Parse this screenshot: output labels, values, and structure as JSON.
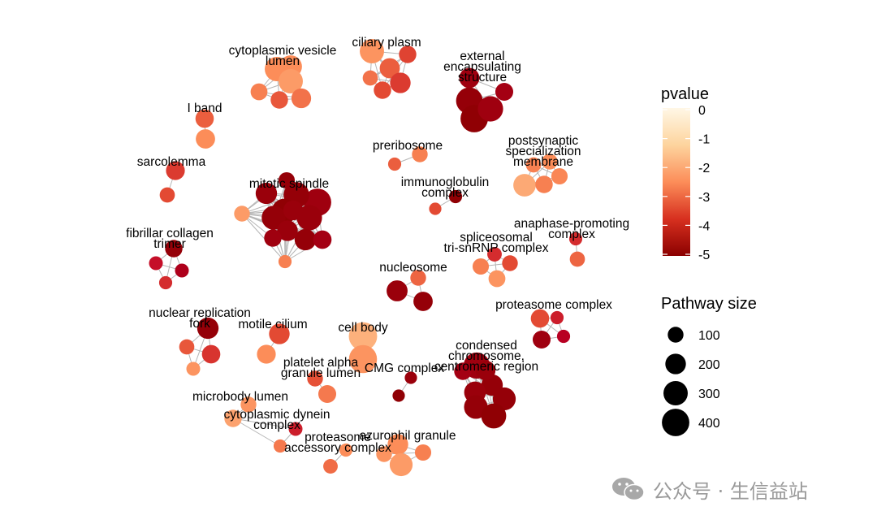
{
  "chart_data": {
    "type": "network",
    "title": "",
    "clusters": [
      {
        "label": "cytoplasmic vesicle\nlumen",
        "nodes": [
          {
            "pvalue": -2.0,
            "size": 300
          },
          {
            "pvalue": -2.0,
            "size": 250
          },
          {
            "pvalue": -1.8,
            "size": 300
          },
          {
            "pvalue": -2.2,
            "size": 120
          },
          {
            "pvalue": -2.8,
            "size": 130
          },
          {
            "pvalue": -2.4,
            "size": 180
          }
        ]
      },
      {
        "label": "ciliary plasm",
        "nodes": [
          {
            "pvalue": -1.9,
            "size": 300
          },
          {
            "pvalue": -2.7,
            "size": 190
          },
          {
            "pvalue": -2.4,
            "size": 90
          },
          {
            "pvalue": -3.0,
            "size": 130
          },
          {
            "pvalue": -3.2,
            "size": 200
          },
          {
            "pvalue": -3.1,
            "size": 130
          }
        ]
      },
      {
        "label": "external\nencapsulating\nstructure",
        "nodes": [
          {
            "pvalue": -4.8,
            "size": 370
          },
          {
            "pvalue": -4.9,
            "size": 400
          },
          {
            "pvalue": -4.6,
            "size": 330
          },
          {
            "pvalue": -4.5,
            "size": 140
          },
          {
            "pvalue": -4.6,
            "size": 190
          }
        ]
      },
      {
        "label": "I band",
        "nodes": [
          {
            "pvalue": -2.7,
            "size": 150
          },
          {
            "pvalue": -2.0,
            "size": 170
          }
        ]
      },
      {
        "label": "sarcolemma",
        "nodes": [
          {
            "pvalue": -3.2,
            "size": 160
          },
          {
            "pvalue": -3.0,
            "size": 90
          }
        ]
      },
      {
        "label": "preribosome",
        "nodes": [
          {
            "pvalue": -2.2,
            "size": 100
          },
          {
            "pvalue": -2.7,
            "size": 60
          }
        ]
      },
      {
        "label": "postsynaptic\nspecialization\nmembrane",
        "nodes": [
          {
            "pvalue": -1.6,
            "size": 250
          },
          {
            "pvalue": -2.2,
            "size": 130
          },
          {
            "pvalue": -2.1,
            "size": 110
          },
          {
            "pvalue": -2.0,
            "size": 100
          },
          {
            "pvalue": -2.2,
            "size": 90
          }
        ]
      },
      {
        "label": "mitotic spindle",
        "nodes": [
          {
            "pvalue": -4.6,
            "size": 400
          },
          {
            "pvalue": -4.8,
            "size": 340
          },
          {
            "pvalue": -4.7,
            "size": 330
          },
          {
            "pvalue": -4.9,
            "size": 320
          },
          {
            "pvalue": -4.8,
            "size": 290
          },
          {
            "pvalue": -4.7,
            "size": 220
          },
          {
            "pvalue": -4.8,
            "size": 220
          },
          {
            "pvalue": -4.7,
            "size": 200
          },
          {
            "pvalue": -4.7,
            "size": 180
          },
          {
            "pvalue": -4.5,
            "size": 150
          },
          {
            "pvalue": -4.6,
            "size": 130
          },
          {
            "pvalue": -4.8,
            "size": 110
          },
          {
            "pvalue": -1.8,
            "size": 100
          },
          {
            "pvalue": -2.2,
            "size": 60
          }
        ]
      },
      {
        "label": "immunoglobulin\ncomplex",
        "nodes": [
          {
            "pvalue": -4.9,
            "size": 60
          },
          {
            "pvalue": -3.0,
            "size": 50
          }
        ]
      },
      {
        "label": "anaphase-promoting\ncomplex",
        "nodes": [
          {
            "pvalue": -3.4,
            "size": 60
          },
          {
            "pvalue": -2.6,
            "size": 90
          }
        ]
      },
      {
        "label": "fibrillar collagen\ntrimer",
        "nodes": [
          {
            "pvalue": -4.8,
            "size": 130
          },
          {
            "pvalue": -4.3,
            "size": 70
          },
          {
            "pvalue": -3.8,
            "size": 70
          },
          {
            "pvalue": -3.4,
            "size": 60
          }
        ]
      },
      {
        "label": "spliceosomal\ntri-snRNP complex",
        "nodes": [
          {
            "pvalue": -3.4,
            "size": 80
          },
          {
            "pvalue": -2.2,
            "size": 110
          },
          {
            "pvalue": -3.0,
            "size": 100
          },
          {
            "pvalue": -1.9,
            "size": 120
          }
        ]
      },
      {
        "label": "nucleosome",
        "nodes": [
          {
            "pvalue": -4.7,
            "size": 210
          },
          {
            "pvalue": -2.6,
            "size": 100
          },
          {
            "pvalue": -4.8,
            "size": 170
          }
        ]
      },
      {
        "label": "proteasome complex",
        "nodes": [
          {
            "pvalue": -3.0,
            "size": 150
          },
          {
            "pvalue": -4.1,
            "size": 60
          },
          {
            "pvalue": -4.6,
            "size": 140
          },
          {
            "pvalue": -3.6,
            "size": 60
          }
        ]
      },
      {
        "label": "nuclear replication\nfork",
        "nodes": [
          {
            "pvalue": -4.8,
            "size": 220
          },
          {
            "pvalue": -2.8,
            "size": 90
          },
          {
            "pvalue": -3.3,
            "size": 150
          },
          {
            "pvalue": -1.9,
            "size": 70
          }
        ]
      },
      {
        "label": "motile cilium",
        "nodes": [
          {
            "pvalue": -3.0,
            "size": 200
          },
          {
            "pvalue": -2.0,
            "size": 160
          }
        ]
      },
      {
        "label": "cell body",
        "nodes": [
          {
            "pvalue": -1.5,
            "size": 430
          },
          {
            "pvalue": -1.9,
            "size": 420
          }
        ]
      },
      {
        "label": "platelet alpha\ngranule lumen",
        "nodes": [
          {
            "pvalue": -2.9,
            "size": 100
          },
          {
            "pvalue": -2.3,
            "size": 140
          }
        ]
      },
      {
        "label": "CMG complex",
        "nodes": [
          {
            "pvalue": -4.7,
            "size": 50
          },
          {
            "pvalue": -4.9,
            "size": 50
          }
        ]
      },
      {
        "label": "condensed\nchromosome,\ncentromeric region",
        "nodes": [
          {
            "pvalue": -4.6,
            "size": 360
          },
          {
            "pvalue": -4.8,
            "size": 220
          },
          {
            "pvalue": -4.7,
            "size": 230
          },
          {
            "pvalue": -4.8,
            "size": 260
          },
          {
            "pvalue": -4.8,
            "size": 280
          },
          {
            "pvalue": -4.9,
            "size": 320
          },
          {
            "pvalue": -4.7,
            "size": 180
          },
          {
            "pvalue": -4.5,
            "size": 130
          }
        ]
      },
      {
        "label": "microbody lumen",
        "nodes": [
          {
            "pvalue": -1.9,
            "size": 100
          },
          {
            "pvalue": -1.4,
            "size": 80
          }
        ]
      },
      {
        "label": "cytoplasmic dynein\ncomplex",
        "nodes": [
          {
            "pvalue": -1.7,
            "size": 130
          },
          {
            "pvalue": -3.6,
            "size": 70
          },
          {
            "pvalue": -2.3,
            "size": 60
          }
        ]
      },
      {
        "label": "proteasome\naccessory complex",
        "nodes": [
          {
            "pvalue": -2.0,
            "size": 60
          },
          {
            "pvalue": -2.5,
            "size": 80
          }
        ]
      },
      {
        "label": "azurophil granule",
        "nodes": [
          {
            "pvalue": -2.0,
            "size": 200
          },
          {
            "pvalue": -1.8,
            "size": 260
          },
          {
            "pvalue": -2.2,
            "size": 110
          },
          {
            "pvalue": -1.9,
            "size": 100
          }
        ]
      }
    ],
    "legend": {
      "color_title": "pvalue",
      "color_ticks": [
        "0",
        "-1",
        "-2",
        "-3",
        "-4",
        "-5"
      ],
      "color_range": [
        -5,
        0
      ],
      "color_stops": [
        "#8b0000",
        "#d7301f",
        "#fc8d59",
        "#fdd49e",
        "#fff7e6"
      ],
      "size_title": "Pathway size",
      "size_ticks": [
        "100",
        "200",
        "300",
        "400"
      ]
    }
  },
  "watermark": {
    "text": "公众号 · 生信益站"
  }
}
